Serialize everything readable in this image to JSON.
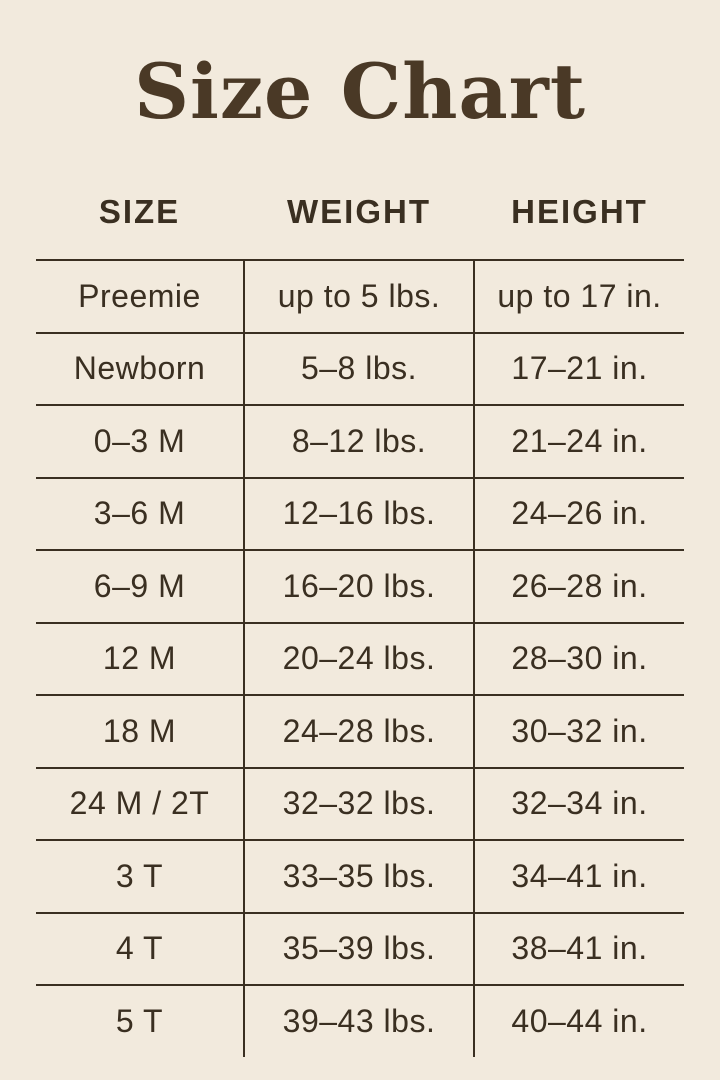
{
  "page": {
    "title": "Size Chart",
    "background_color": "#F2EADD",
    "title_color": "#4A3926",
    "text_color": "#3A2F21",
    "line_color": "#3A2F21"
  },
  "table": {
    "headers": [
      "SIZE",
      "WEIGHT",
      "HEIGHT"
    ],
    "rows": [
      {
        "size": "Preemie",
        "weight": "up to 5 lbs.",
        "height": "up to 17 in."
      },
      {
        "size": "Newborn",
        "weight": "5–8 lbs.",
        "height": "17–21 in."
      },
      {
        "size": "0–3 M",
        "weight": "8–12 lbs.",
        "height": "21–24 in."
      },
      {
        "size": "3–6 M",
        "weight": "12–16 lbs.",
        "height": "24–26 in."
      },
      {
        "size": "6–9 M",
        "weight": "16–20 lbs.",
        "height": "26–28 in."
      },
      {
        "size": "12 M",
        "weight": "20–24 lbs.",
        "height": "28–30 in."
      },
      {
        "size": "18 M",
        "weight": "24–28 lbs.",
        "height": "30–32 in."
      },
      {
        "size": "24 M / 2T",
        "weight": "32–32 lbs.",
        "height": "32–34 in."
      },
      {
        "size": "3 T",
        "weight": "33–35 lbs.",
        "height": "34–41 in."
      },
      {
        "size": "4 T",
        "weight": "35–39 lbs.",
        "height": "38–41 in."
      },
      {
        "size": "5 T",
        "weight": "39–43 lbs.",
        "height": "40–44 in."
      }
    ]
  },
  "chart_data": {
    "type": "table",
    "title": "Size Chart",
    "columns": [
      "SIZE",
      "WEIGHT",
      "HEIGHT"
    ],
    "rows": [
      [
        "Preemie",
        "up to 5 lbs.",
        "up to 17 in."
      ],
      [
        "Newborn",
        "5–8 lbs.",
        "17–21 in."
      ],
      [
        "0–3 M",
        "8–12 lbs.",
        "21–24 in."
      ],
      [
        "3–6 M",
        "12–16 lbs.",
        "24–26 in."
      ],
      [
        "6–9 M",
        "16–20 lbs.",
        "26–28 in."
      ],
      [
        "12 M",
        "20–24 lbs.",
        "28–30 in."
      ],
      [
        "18 M",
        "24–28 lbs.",
        "30–32 in."
      ],
      [
        "24 M / 2T",
        "32–32 lbs.",
        "32–34 in."
      ],
      [
        "3 T",
        "33–35 lbs.",
        "34–41 in."
      ],
      [
        "4 T",
        "35–39 lbs.",
        "38–41 in."
      ],
      [
        "5 T",
        "39–43 lbs.",
        "40–44 in."
      ]
    ],
    "layout": {
      "grid": "horizontal rules between all rows; vertical rules around middle column only; no outer border; no rule below last row",
      "legend": "none",
      "header_outside_grid": true
    }
  }
}
